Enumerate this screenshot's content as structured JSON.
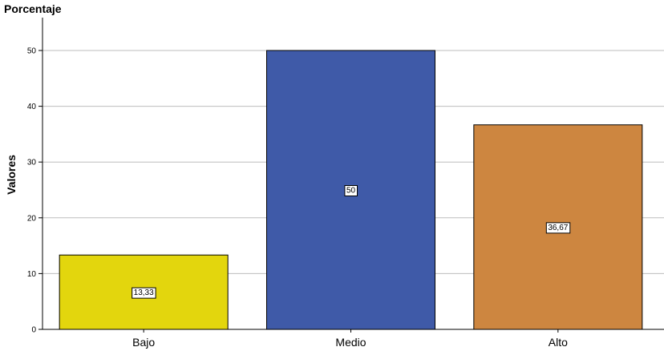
{
  "chart_data": {
    "type": "bar",
    "title": "Porcentaje",
    "ylabel": "Valores",
    "xlabel": "",
    "categories": [
      "Bajo",
      "Medio",
      "Alto"
    ],
    "values": [
      13.33,
      50,
      36.67
    ],
    "data_labels": [
      "13,33",
      "50",
      "36,67"
    ],
    "colors": [
      "#e3d60d",
      "#3f5aa8",
      "#cd8640"
    ],
    "ylim": [
      0,
      55
    ],
    "yticks": [
      0,
      10,
      20,
      30,
      40,
      50
    ],
    "grid": true,
    "gridColor": "#bdbdbd"
  }
}
